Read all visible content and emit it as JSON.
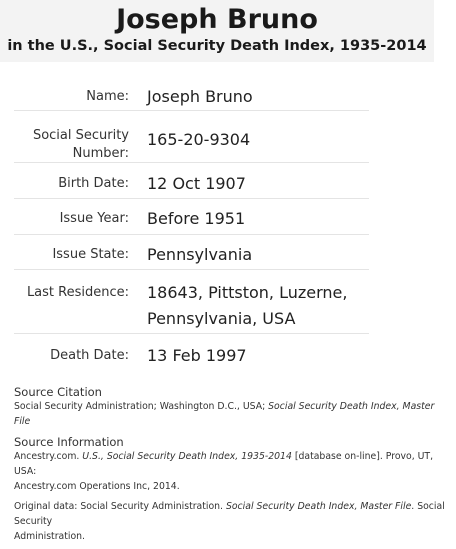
{
  "header": {
    "title": "Joseph Bruno",
    "subtitle": "in the U.S., Social Security Death Index, 1935-2014"
  },
  "record": {
    "name_label": "Name:",
    "name_value": "Joseph Bruno",
    "ssn_label_line1": "Social Security",
    "ssn_label_line2": "Number:",
    "ssn_value": "165-20-9304",
    "birth_label": "Birth Date:",
    "birth_value": "12 Oct 1907",
    "issue_year_label": "Issue Year:",
    "issue_year_value": "Before 1951",
    "issue_state_label": "Issue State:",
    "issue_state_value": "Pennsylvania",
    "residence_label": "Last Residence:",
    "residence_value_line1": "18643, Pittston, Luzerne,",
    "residence_value_line2": "Pennsylvania, USA",
    "death_label": "Death Date:",
    "death_value": "13 Feb 1997"
  },
  "sources": {
    "citation_heading": "Source Citation",
    "citation_text_plain": "Social Security Administration; Washington D.C., USA; ",
    "citation_text_italic": "Social Security Death Index, Master File",
    "info_heading": "Source Information",
    "info_text_1": "Ancestry.com. ",
    "info_text_2_italic": "U.S., Social Security Death Index, 1935-2014",
    "info_text_3": " [database on-line]. Provo, UT, USA:",
    "info_text_4": "Ancestry.com Operations Inc, 2014.",
    "orig_text_1": "Original data: Social Security Administration. ",
    "orig_text_2_italic": "Social Security Death Index, Master File",
    "orig_text_3": ". Social Security",
    "orig_text_4": "Administration."
  }
}
